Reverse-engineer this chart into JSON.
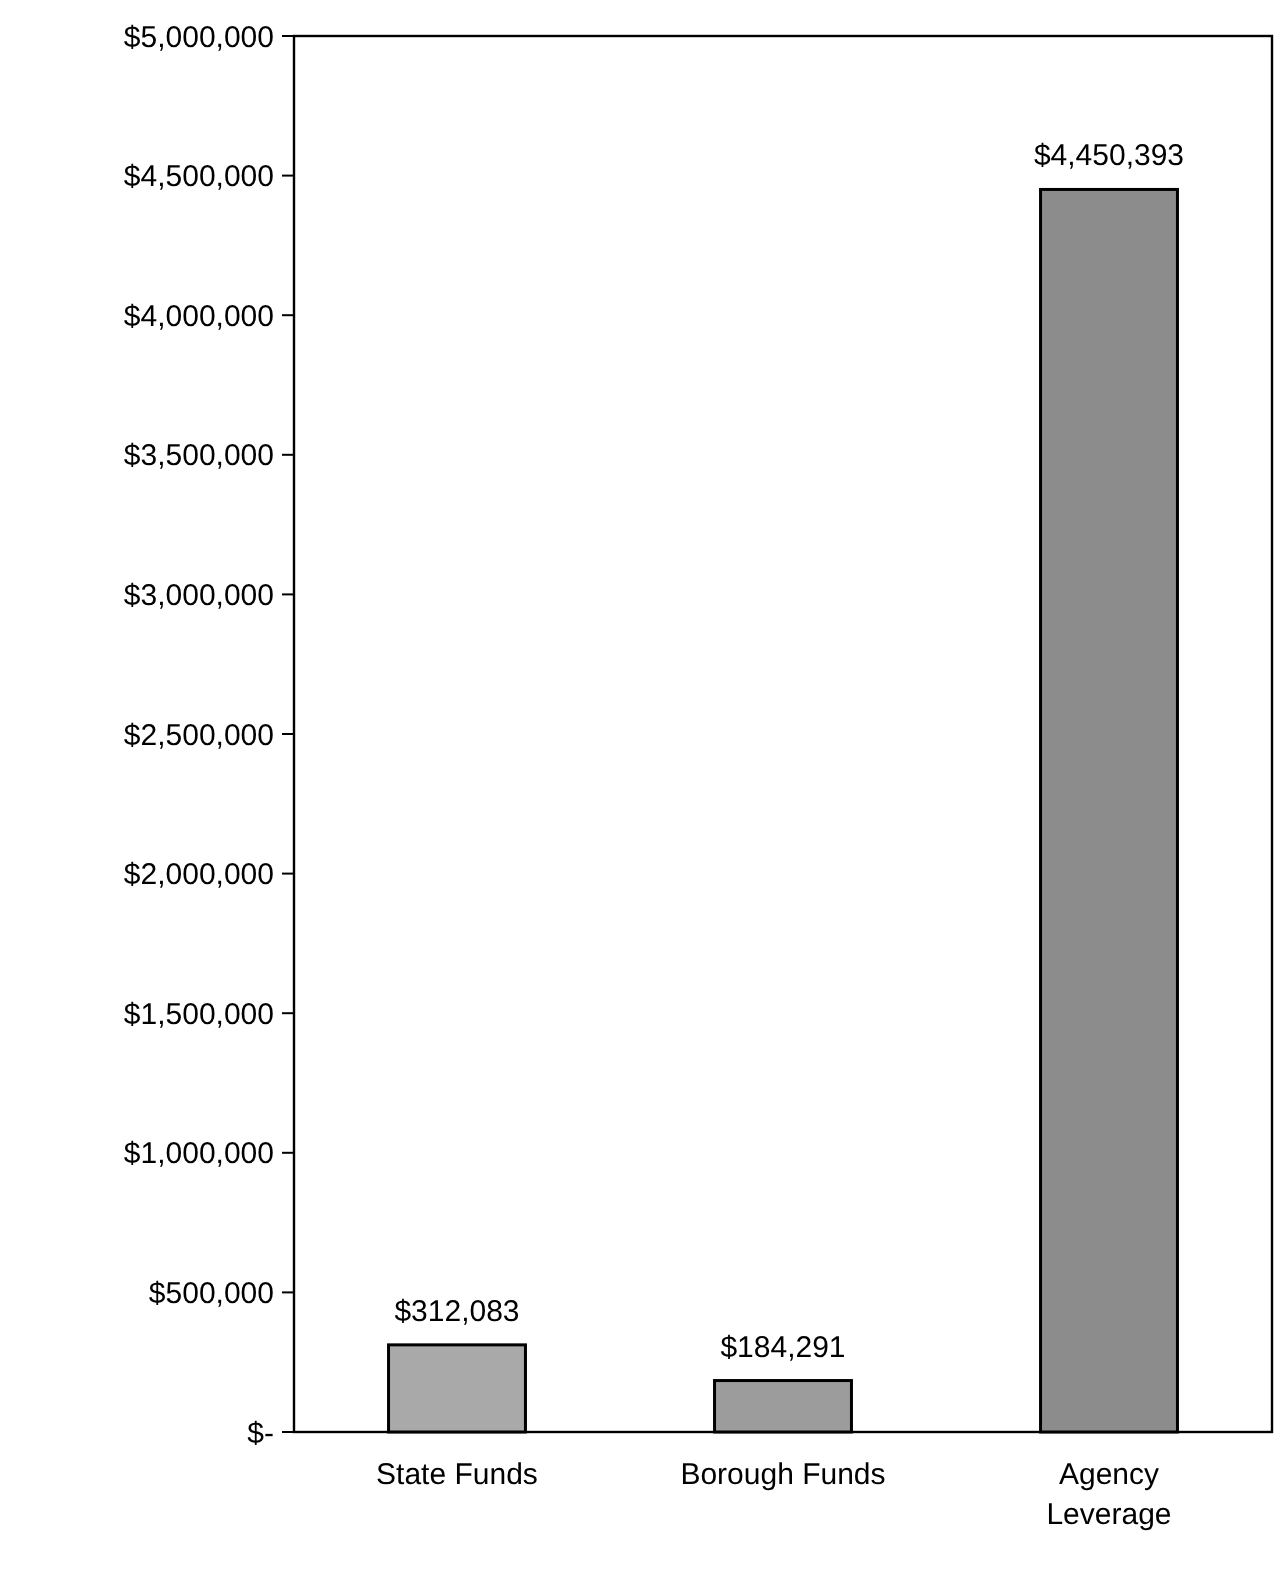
{
  "chart_data": {
    "type": "bar",
    "categories": [
      "State Funds",
      "Borough Funds",
      "Agency Leverage"
    ],
    "values": [
      312083,
      184291,
      4450393
    ],
    "colors": [
      "#a9a9a9",
      "#9c9c9c",
      "#8c8c8c"
    ],
    "value_labels": [
      "$312,083",
      "$184,291",
      "$4,450,393"
    ],
    "ylim": [
      0,
      5000000
    ],
    "yticks": [
      {
        "value": 0,
        "label": "$-"
      },
      {
        "value": 500000,
        "label": "$500,000"
      },
      {
        "value": 1000000,
        "label": "$1,000,000"
      },
      {
        "value": 1500000,
        "label": "$1,500,000"
      },
      {
        "value": 2000000,
        "label": "$2,000,000"
      },
      {
        "value": 2500000,
        "label": "$2,500,000"
      },
      {
        "value": 3000000,
        "label": "$3,000,000"
      },
      {
        "value": 3500000,
        "label": "$3,500,000"
      },
      {
        "value": 4000000,
        "label": "$4,000,000"
      },
      {
        "value": 4500000,
        "label": "$4,500,000"
      },
      {
        "value": 5000000,
        "label": "$5,000,000"
      }
    ],
    "grid": false
  }
}
